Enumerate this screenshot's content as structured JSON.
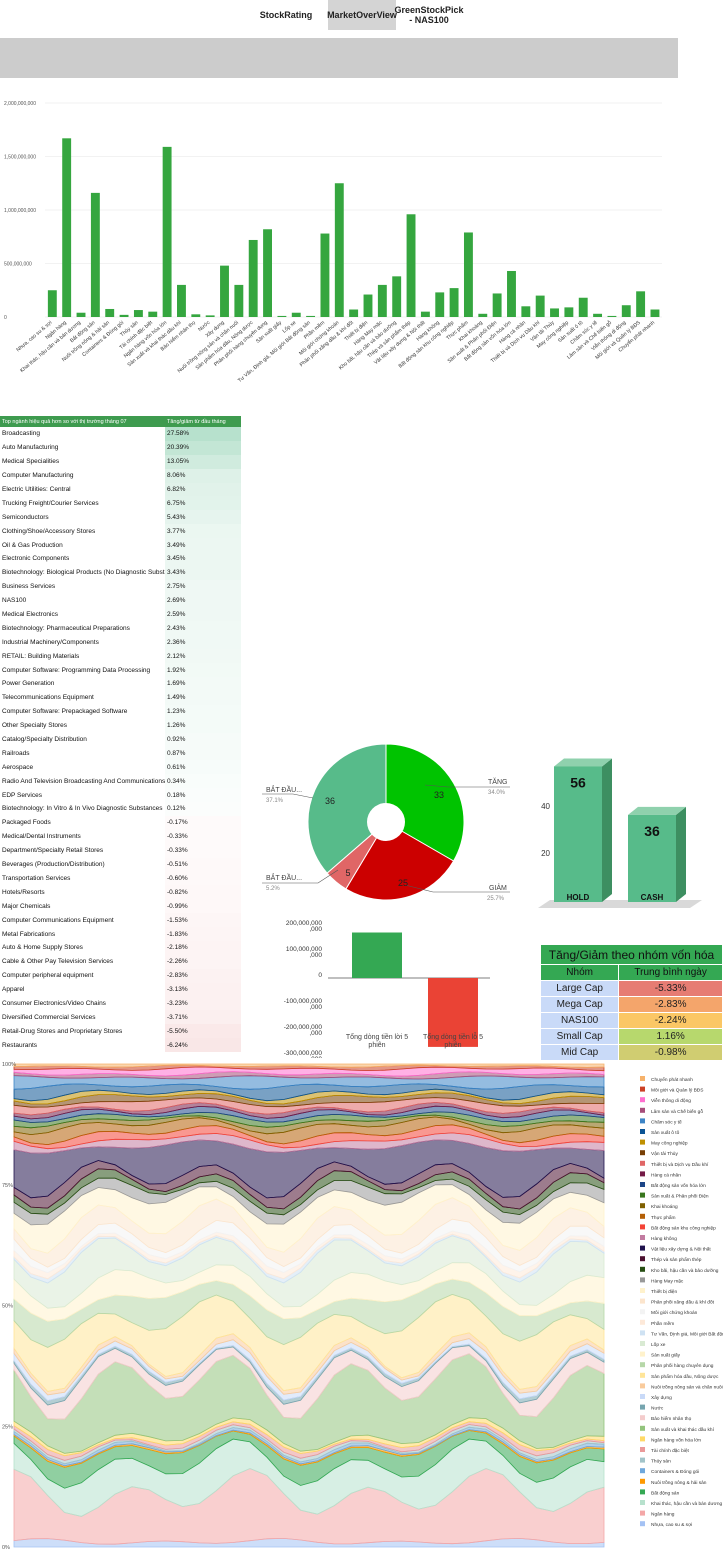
{
  "tabs": [
    {
      "label": "StockRating",
      "active": false
    },
    {
      "label": "MarketOverView",
      "active": true
    },
    {
      "label": "GreenStockPick - NAS100",
      "active": false
    }
  ],
  "bar_chart": {
    "y_ticks": [
      "2,000,000,000",
      "1,500,000,000",
      "1,000,000,000",
      "500,000,000",
      "0"
    ]
  },
  "performance_table": {
    "header": [
      "Top ngành hiệu quả hơn so với thị trường tháng 07",
      "Tăng/giảm từ đầu tháng"
    ],
    "rows": [
      {
        "name": "Broadcasting",
        "value": "27.58%",
        "color": "#b7e1cd"
      },
      {
        "name": "Auto Manufacturing",
        "value": "20.39%",
        "color": "#c3e6d5"
      },
      {
        "name": "Medical Specialities",
        "value": "13.05%",
        "color": "#d0ebde"
      },
      {
        "name": "Computer Manufacturing",
        "value": "8.06%",
        "color": "#def1e8"
      },
      {
        "name": "Electric Utilities: Central",
        "value": "6.82%",
        "color": "#e1f2ea"
      },
      {
        "name": "Trucking Freight/Courier Services",
        "value": "6.75%",
        "color": "#e2f3eb"
      },
      {
        "name": "Semiconductors",
        "value": "5.43%",
        "color": "#e6f4ee"
      },
      {
        "name": "Clothing/Shoe/Accessory Stores",
        "value": "3.77%",
        "color": "#ebf7f1"
      },
      {
        "name": "Oil & Gas Production",
        "value": "3.49%",
        "color": "#ecf7f2"
      },
      {
        "name": "Electronic Components",
        "value": "3.45%",
        "color": "#ecf7f2"
      },
      {
        "name": "Biotechnology: Biological Products (No Diagnostic Substances)",
        "value": "3.43%",
        "color": "#ecf7f2"
      },
      {
        "name": "Business Services",
        "value": "2.75%",
        "color": "#eff8f4"
      },
      {
        "name": "NAS100",
        "value": "2.69%",
        "color": "#eff8f4"
      },
      {
        "name": "Medical Electronics",
        "value": "2.59%",
        "color": "#eff8f4"
      },
      {
        "name": "Biotechnology: Pharmaceutical Preparations",
        "value": "2.43%",
        "color": "#f0f9f5"
      },
      {
        "name": "Industrial Machinery/Components",
        "value": "2.36%",
        "color": "#f0f9f5"
      },
      {
        "name": "RETAIL: Building Materials",
        "value": "2.12%",
        "color": "#f1f9f5"
      },
      {
        "name": "Computer Software: Programming Data Processing",
        "value": "1.92%",
        "color": "#f2faf6"
      },
      {
        "name": "Power Generation",
        "value": "1.69%",
        "color": "#f3faf7"
      },
      {
        "name": "Telecommunications Equipment",
        "value": "1.49%",
        "color": "#f3faf7"
      },
      {
        "name": "Computer Software: Prepackaged Software",
        "value": "1.23%",
        "color": "#f4fbf8"
      },
      {
        "name": "Other Specialty Stores",
        "value": "1.26%",
        "color": "#f4fbf8"
      },
      {
        "name": "Catalog/Specialty Distribution",
        "value": "0.92%",
        "color": "#f6fbf9"
      },
      {
        "name": "Railroads",
        "value": "0.87%",
        "color": "#f6fbf9"
      },
      {
        "name": "Aerospace",
        "value": "0.61%",
        "color": "#f7fcfa"
      },
      {
        "name": "Radio And Television Broadcasting And Communications Equipment",
        "value": "0.34%",
        "color": "#f9fdfb"
      },
      {
        "name": "EDP Services",
        "value": "0.18%",
        "color": "#fafdfc"
      },
      {
        "name": "Biotechnology: In Vitro & In Vivo Diagnostic Substances",
        "value": "0.12%",
        "color": "#fbfdfc"
      },
      {
        "name": "Packaged Foods",
        "value": "-0.17%",
        "color": "#fefafa"
      },
      {
        "name": "Medical/Dental Instruments",
        "value": "-0.33%",
        "color": "#fefafa"
      },
      {
        "name": "Department/Specialty Retail Stores",
        "value": "-0.33%",
        "color": "#fefafa"
      },
      {
        "name": "Beverages (Production/Distribution)",
        "value": "-0.51%",
        "color": "#fef9f9"
      },
      {
        "name": "Transportation Services",
        "value": "-0.60%",
        "color": "#fef9f9"
      },
      {
        "name": "Hotels/Resorts",
        "value": "-0.82%",
        "color": "#fef8f8"
      },
      {
        "name": "Major Chemicals",
        "value": "-0.99%",
        "color": "#fef8f8"
      },
      {
        "name": "Computer Communications Equipment",
        "value": "-1.53%",
        "color": "#fdf6f6"
      },
      {
        "name": "Metal Fabrications",
        "value": "-1.83%",
        "color": "#fdf5f5"
      },
      {
        "name": "Auto & Home Supply Stores",
        "value": "-2.18%",
        "color": "#fdf4f4"
      },
      {
        "name": "Cable & Other Pay Television Services",
        "value": "-2.26%",
        "color": "#fdf4f4"
      },
      {
        "name": "Computer peripheral equipment",
        "value": "-2.83%",
        "color": "#fcf2f2"
      },
      {
        "name": "Apparel",
        "value": "-3.13%",
        "color": "#fcf1f1"
      },
      {
        "name": "Consumer Electronics/Video Chains",
        "value": "-3.23%",
        "color": "#fcf1f1"
      },
      {
        "name": "Diversified Commercial Services",
        "value": "-3.71%",
        "color": "#fbefef"
      },
      {
        "name": "Retail-Drug Stores and Proprietary Stores",
        "value": "-5.50%",
        "color": "#fae9e9"
      },
      {
        "name": "Restaurants",
        "value": "-6.24%",
        "color": "#f9e7e7"
      }
    ]
  },
  "pie_labels": {
    "up": {
      "name": "TĂNG",
      "pct": "34.0%",
      "count": "33"
    },
    "down": {
      "name": "GIẢM",
      "pct": "25.7%",
      "count": "25"
    },
    "flat_big": {
      "name": "BẮT ĐẦU...",
      "pct": "37.1%",
      "count": "36"
    },
    "flat_small": {
      "name": "BẮT ĐẦU...",
      "pct": "5.2%",
      "count": "5"
    }
  },
  "hold_cash": {
    "y_ticks": [
      "40",
      "20"
    ],
    "bars": [
      {
        "label": "HOLD",
        "value": "56"
      },
      {
        "label": "CASH",
        "value": "36"
      }
    ]
  },
  "flow_chart": {
    "y_ticks": [
      "200,000,000\n,000",
      "100,000,000\n,000",
      "0",
      "-100,000,000\n,000",
      "-200,000,000\n,000",
      "-300,000,000\n,000"
    ],
    "bars": [
      {
        "label": "Tổng dòng tiền lời 5 phiên"
      },
      {
        "label": "Tổng dòng tiền lỗ 5 phiên"
      }
    ]
  },
  "cap_table": {
    "title": "Tăng/Giảm theo nhóm vốn hóa",
    "headers": [
      "Nhóm",
      "Trung bình ngày"
    ],
    "rows": [
      {
        "group": "Large Cap",
        "avg": "-5.33%",
        "color": "#e67c73"
      },
      {
        "group": "Mega Cap",
        "avg": "-2.83%",
        "color": "#f4a56b"
      },
      {
        "group": "NAS100",
        "avg": "-2.24%",
        "color": "#fbc765"
      },
      {
        "group": "Small Cap",
        "avg": "1.16%",
        "color": "#b7d86d"
      },
      {
        "group": "Mid Cap",
        "avg": "-0.98%",
        "color": "#d0cd71"
      }
    ]
  },
  "area_chart": {
    "y_ticks": [
      "100%",
      "75%",
      "50%",
      "25%",
      "0%"
    ]
  },
  "chart_data": [
    {
      "type": "bar",
      "categories": [
        "Nhựa, cao su & sợi",
        "Ngân hàng",
        "Khai thác, hậu cần và bán dương",
        "Bất động sản",
        "Nuôi trồng nông & hải sản",
        "Containers & Đóng gói",
        "Thủy sản",
        "Tài chính đặc biệt",
        "Ngân hàng vốn hóa lớn",
        "Sản xuất và khai thác dầu khí",
        "Bảo hiểm nhân thọ",
        "Nước",
        "Xây dựng",
        "Nuôi trồng nông sản và chăn nuôi",
        "Sản phẩm hóa dầu, Nông dược",
        "Phân phối hàng chuyên dụng",
        "Sản xuất giấy",
        "Lốp xe",
        "Tư Vấn, Định giá, Môi giới Bất động sản",
        "Phần mềm",
        "Môi giới chứng khoán",
        "Phân phối xăng dầu & khí đốt",
        "Thiết bị điện",
        "Hàng May mặc",
        "Kho bãi, hậu cần và bảo dưỡng",
        "Thép và sản phẩm thép",
        "Vật liệu xây dựng & Nội thất",
        "Hàng không",
        "Bất động sản khu công nghiệp",
        "Thực phẩm",
        "Khai khoáng",
        "Sản xuất & Phân phối Điện",
        "Bất động sản vốn hóa lớn",
        "Hàng cá nhân",
        "Thiết bị và Dịch vụ Dầu khí",
        "Vận tải Thủy",
        "May công nghiệp",
        "Sản xuất ô tô",
        "Chăm sóc y tế",
        "Lâm sản và Chế biến gỗ",
        "Viễn thông di động",
        "Môi giới và Quản lý BĐS",
        "Chuyển phát nhanh"
      ],
      "values": [
        250000000,
        1670000000,
        40000000,
        1160000000,
        75000000,
        20000000,
        65000000,
        50000000,
        1590000000,
        300000000,
        25000000,
        15000000,
        480000000,
        300000000,
        720000000,
        820000000,
        10000000,
        40000000,
        10000000,
        780000000,
        1250000000,
        70000000,
        210000000,
        300000000,
        380000000,
        960000000,
        50000000,
        230000000,
        270000000,
        790000000,
        30000000,
        220000000,
        430000000,
        100000000,
        200000000,
        80000000,
        90000000,
        180000000,
        30000000,
        10000000,
        110000000,
        240000000,
        70000000
      ],
      "ylim": [
        0,
        2000000000
      ]
    },
    {
      "type": "pie",
      "labels": [
        "TĂNG",
        "GIẢM",
        "BẮT ĐẦU...",
        "BẮT ĐẦU..."
      ],
      "values": [
        33,
        25,
        5,
        36
      ],
      "percentages": [
        34.0,
        25.7,
        5.2,
        37.1
      ],
      "colors": [
        "#00c300",
        "#cc0000",
        "#e06666",
        "#57bb8a"
      ]
    },
    {
      "type": "bar",
      "categories": [
        "HOLD",
        "CASH"
      ],
      "values": [
        56,
        36
      ],
      "colors": [
        "#57bb8a",
        "#57bb8a"
      ]
    },
    {
      "type": "bar",
      "categories": [
        "Tổng dòng tiền lời 5 phiên",
        "Tổng dòng tiền lỗ 5 phiên"
      ],
      "values": [
        175000000000000,
        -265000000000000
      ],
      "colors": [
        "#34a853",
        "#ea4335"
      ],
      "ylim": [
        -300000000000000,
        200000000000000
      ]
    },
    {
      "type": "area",
      "stacked_percent": true,
      "ylim": [
        0,
        100
      ],
      "legend_position": "right",
      "series": [
        {
          "name": "Chuyển phát nhanh",
          "color": "#f6b26b"
        },
        {
          "name": "Môi giới và Quản lý BĐS",
          "color": "#cc4125"
        },
        {
          "name": "Viễn thông di động",
          "color": "#ff6fcf"
        },
        {
          "name": "Lâm sản và Chế biến gỗ",
          "color": "#a64d79"
        },
        {
          "name": "Chăm sóc y tế",
          "color": "#3d85c6"
        },
        {
          "name": "Sản xuất ô tô",
          "color": "#0b5394"
        },
        {
          "name": "May công nghiệp",
          "color": "#bf9000"
        },
        {
          "name": "Vận tải Thủy",
          "color": "#783f04"
        },
        {
          "name": "Thiết bị và Dịch vụ Dầu khí",
          "color": "#e06666"
        },
        {
          "name": "Hàng cá nhân",
          "color": "#741b47"
        },
        {
          "name": "Bất động sản vốn hóa lớn",
          "color": "#1c4587"
        },
        {
          "name": "Sản xuất & Phân phối Điện",
          "color": "#38761d"
        },
        {
          "name": "Khai khoáng",
          "color": "#7f6000"
        },
        {
          "name": "Thực phẩm",
          "color": "#b45f06"
        },
        {
          "name": "Bất động sản khu công nghiệp",
          "color": "#f44336"
        },
        {
          "name": "Hàng không",
          "color": "#c27ba0"
        },
        {
          "name": "Vật liệu xây dựng & Nội thất",
          "color": "#20124d"
        },
        {
          "name": "Thép và sản phẩm thép",
          "color": "#4c1130"
        },
        {
          "name": "Kho bãi, hậu cần và bảo dưỡng",
          "color": "#274e13"
        },
        {
          "name": "Hàng May mặc",
          "color": "#999999"
        },
        {
          "name": "Thiết bị điện",
          "color": "#fff2cc"
        },
        {
          "name": "Phân phối xăng dầu & khí đốt",
          "color": "#fce5cd"
        },
        {
          "name": "Môi giới chứng khoán",
          "color": "#f3f3f3"
        },
        {
          "name": "Phần mềm",
          "color": "#fde9d9"
        },
        {
          "name": "Tư Vấn, Định giá, Môi giới Bất động sản",
          "color": "#cfe2f3"
        },
        {
          "name": "Lốp xe",
          "color": "#d9ead3"
        },
        {
          "name": "Sản xuất giấy",
          "color": "#fff2cc"
        },
        {
          "name": "Phân phối hàng chuyên dụng",
          "color": "#b6d7a8"
        },
        {
          "name": "Sản phẩm hóa dầu, Nông dược",
          "color": "#ffe599"
        },
        {
          "name": "Nuôi trồng nông sản và chăn nuôi",
          "color": "#f9cb9c"
        },
        {
          "name": "Xây dựng",
          "color": "#c9daf8"
        },
        {
          "name": "Nước",
          "color": "#76a5af"
        },
        {
          "name": "Bảo hiểm nhân thọ",
          "color": "#f4cccc"
        },
        {
          "name": "Sản xuất và khai thác dầu khí",
          "color": "#93c47d"
        },
        {
          "name": "Ngân hàng vốn hóa lớn",
          "color": "#ffd966"
        },
        {
          "name": "Tài chính đặc biệt",
          "color": "#ea9999"
        },
        {
          "name": "Thủy sản",
          "color": "#a2c4c9"
        },
        {
          "name": "Containers & Đóng gói",
          "color": "#6fa8dc"
        },
        {
          "name": "Nuôi trồng nông & hải sản",
          "color": "#ff9900"
        },
        {
          "name": "Bất động sản",
          "color": "#34a853"
        },
        {
          "name": "Khai thác, hậu cần và bán dương",
          "color": "#b7e1cd"
        },
        {
          "name": "Ngân hàng",
          "color": "#f4a7a7"
        },
        {
          "name": "Nhựa, cao su & sợi",
          "color": "#a4c2f4"
        }
      ]
    }
  ]
}
